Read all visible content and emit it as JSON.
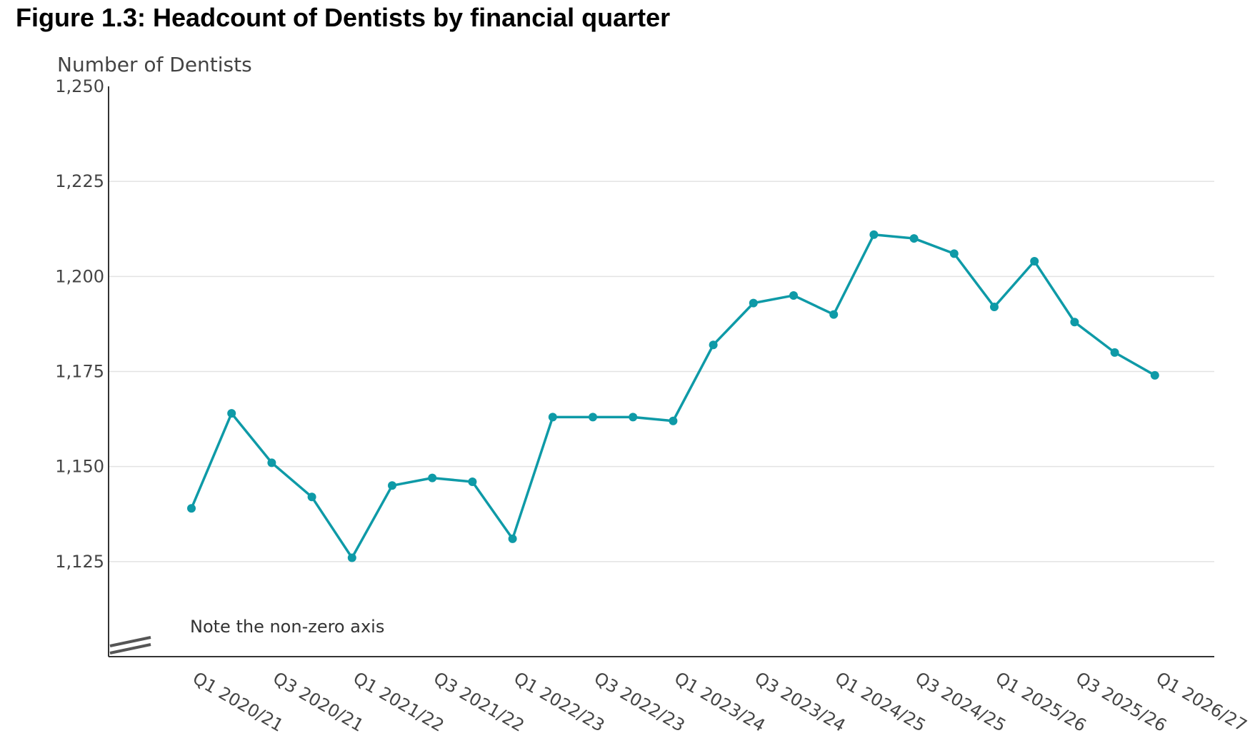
{
  "title": "Figure 1.3: Headcount of Dentists by financial quarter",
  "chart_data": {
    "type": "line",
    "title": "Figure 1.3: Headcount of Dentists by financial quarter",
    "ylabel": "Number of Dentists",
    "xlabel": "",
    "ylim": [
      1100,
      1250
    ],
    "yticks": [
      1125,
      1150,
      1175,
      1200,
      1225,
      1250
    ],
    "ytick_labels": [
      "1,125",
      "1,150",
      "1,175",
      "1,200",
      "1,225",
      "1,250"
    ],
    "grid": "horizontal",
    "note": "Note the non-zero axis",
    "x": [
      "Q1 2020/21",
      "Q2 2020/21",
      "Q3 2020/21",
      "Q4 2020/21",
      "Q1 2021/22",
      "Q2 2021/22",
      "Q3 2021/22",
      "Q4 2021/22",
      "Q1 2022/23",
      "Q2 2022/23",
      "Q3 2022/23",
      "Q4 2022/23",
      "Q1 2023/24",
      "Q2 2023/24",
      "Q3 2023/24",
      "Q4 2023/24",
      "Q1 2024/25",
      "Q2 2024/25",
      "Q3 2024/25",
      "Q4 2024/25",
      "Q1 2025/26",
      "Q2 2025/26",
      "Q3 2025/26",
      "Q4 2025/26",
      "Q1 2026/27"
    ],
    "xtick_labels": [
      "Q1 2020/21",
      "Q3 2020/21",
      "Q1 2021/22",
      "Q3 2021/22",
      "Q1 2022/23",
      "Q3 2022/23",
      "Q1 2023/24",
      "Q3 2023/24",
      "Q1 2024/25",
      "Q3 2024/25",
      "Q1 2025/26",
      "Q3 2025/26",
      "Q1 2026/27"
    ],
    "series": [
      {
        "color": "#0e9aa7",
        "values": [
          1139,
          1164,
          1151,
          1142,
          1126,
          1145,
          1147,
          1146,
          1131,
          1163,
          1163,
          1163,
          1162,
          1182,
          1193,
          1195,
          1190,
          1211,
          1210,
          1206,
          1192,
          1204,
          1188,
          1180,
          1174
        ]
      }
    ]
  }
}
